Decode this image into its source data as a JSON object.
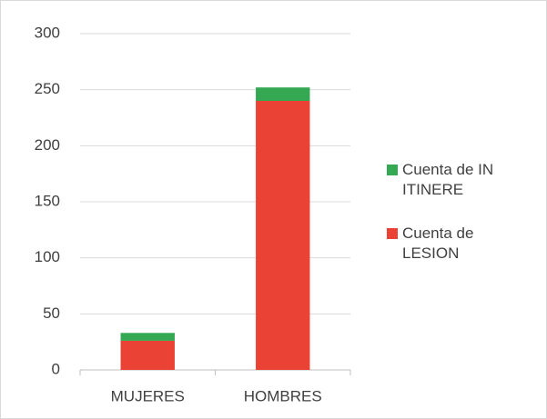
{
  "chart_data": {
    "type": "stacked-bar",
    "categories": [
      "MUJERES",
      "HOMBRES"
    ],
    "series": [
      {
        "name": "Cuenta de LESION",
        "color": "#ea4335",
        "values": [
          26,
          240
        ]
      },
      {
        "name": "Cuenta de IN ITINERE",
        "color": "#34a853",
        "values": [
          7,
          12
        ]
      }
    ],
    "ylim": [
      0,
      300
    ],
    "yticks": [
      0,
      50,
      100,
      150,
      200,
      250,
      300
    ],
    "grid": true,
    "legend": "right"
  }
}
